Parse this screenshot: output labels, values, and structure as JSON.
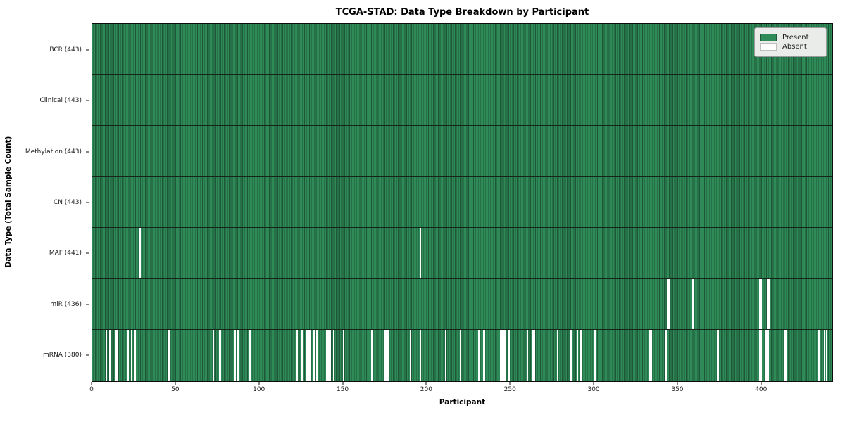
{
  "title": "TCGA-STAD: Data Type Breakdown by Participant",
  "xlabel": "Participant",
  "ylabel": "Data Type (Total Sample Count)",
  "legend": {
    "present_label": "Present",
    "absent_label": "Absent"
  },
  "colors": {
    "present_fill": "#2e8b57",
    "bar_edge": "#1d5737",
    "absent_fill": "#ffffff",
    "row_divider": "#15251a",
    "axis_spine": "#0d0d0d",
    "legend_bg": "#e9ece9",
    "legend_border": "#9a9a9a"
  },
  "chart_data": {
    "type": "heatmap",
    "title": "TCGA-STAD: Data Type Breakdown by Participant",
    "xlabel": "Participant",
    "ylabel": "Data Type (Total Sample Count)",
    "legend_entries": [
      {
        "label": "Present",
        "color": "#2e8b57"
      },
      {
        "label": "Absent",
        "color": "#ffffff"
      }
    ],
    "legend_position": "upper right",
    "n_participants": 443,
    "x_axis": {
      "min": 0,
      "max": 443,
      "ticks": [
        0,
        50,
        100,
        150,
        200,
        250,
        300,
        350,
        400
      ]
    },
    "rows": [
      {
        "key": "bcr",
        "label": "BCR (443)",
        "data_type": "BCR",
        "present_count": 443,
        "absent_count": 0,
        "absent_participants": []
      },
      {
        "key": "clinical",
        "label": "Clinical (443)",
        "data_type": "Clinical",
        "present_count": 443,
        "absent_count": 0,
        "absent_participants": []
      },
      {
        "key": "methylation",
        "label": "Methylation (443)",
        "data_type": "Methylation",
        "present_count": 443,
        "absent_count": 0,
        "absent_participants": []
      },
      {
        "key": "cn",
        "label": "CN (443)",
        "data_type": "CN",
        "present_count": 443,
        "absent_count": 0,
        "absent_participants": []
      },
      {
        "key": "maf",
        "label": "MAF (441)",
        "data_type": "MAF",
        "present_count": 441,
        "absent_count": 2,
        "absent_participants": [
          28,
          196
        ]
      },
      {
        "key": "mir",
        "label": "miR (436)",
        "data_type": "miR",
        "present_count": 436,
        "absent_count": 7,
        "absent_participants": [
          344,
          345,
          359,
          399,
          400,
          404,
          405
        ]
      },
      {
        "key": "mrna",
        "label": "mRNA (380)",
        "data_type": "mRNA",
        "present_count": 380,
        "absent_count": 63,
        "absent_participants": [
          8,
          10,
          14,
          21,
          23,
          25,
          45,
          46,
          72,
          76,
          85,
          87,
          94,
          122,
          125,
          128,
          129,
          130,
          132,
          134,
          140,
          141,
          142,
          144,
          150,
          167,
          175,
          176,
          177,
          190,
          196,
          211,
          220,
          231,
          234,
          244,
          245,
          246,
          247,
          249,
          260,
          263,
          264,
          278,
          286,
          290,
          292,
          300,
          301,
          333,
          334,
          343,
          374,
          399,
          400,
          403,
          404,
          414,
          415,
          434,
          435,
          438,
          439
        ]
      }
    ]
  }
}
